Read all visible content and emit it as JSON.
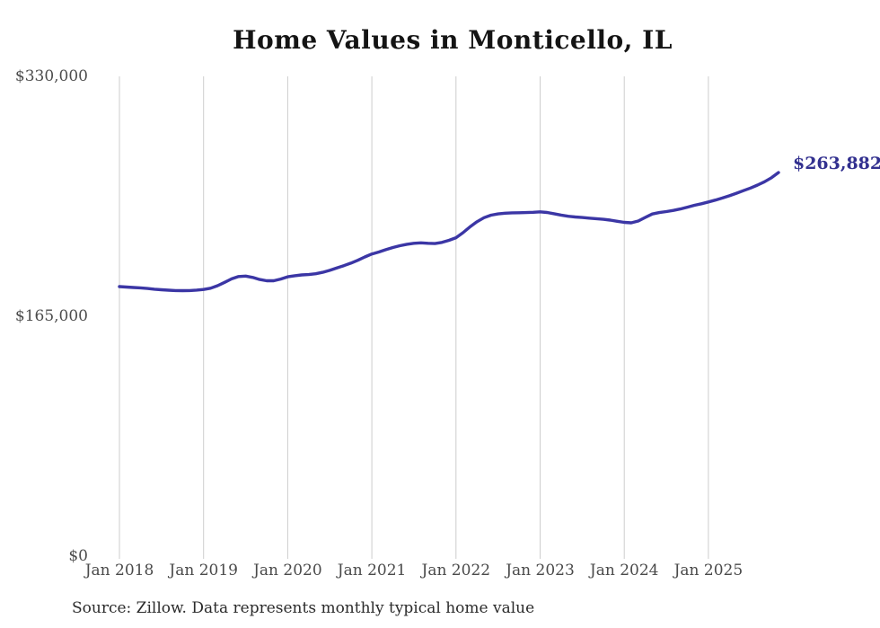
{
  "title": "Home Values in Monticello, IL",
  "source_note": "Source: Zillow. Data represents monthly typical home value",
  "end_label": "$263,882",
  "colors": {
    "line": "#3b36a5",
    "end_label": "#32308f",
    "grid": "#cdcdcd",
    "axis_text": "#4a4a4a",
    "title_text": "#141414",
    "background": "#ffffff"
  },
  "chart_data": {
    "type": "line",
    "title": "Home Values in Monticello, IL",
    "xlabel": "",
    "ylabel": "",
    "ylim": [
      0,
      330000
    ],
    "y_ticks": [
      0,
      165000,
      330000
    ],
    "y_tick_labels": [
      "$0",
      "$165,000",
      "$330,000"
    ],
    "x_tick_labels": [
      "Jan 2018",
      "Jan 2019",
      "Jan 2020",
      "Jan 2021",
      "Jan 2022",
      "Jan 2023",
      "Jan 2024",
      "Jan 2025"
    ],
    "x_frequency": "monthly",
    "x_start": "2018-01",
    "x_end": "2025-11",
    "grid": "vertical-only",
    "legend": false,
    "final_value": 263882,
    "final_value_label": "$263,882",
    "series": [
      {
        "name": "Typical home value",
        "values": [
          185400,
          185100,
          184800,
          184500,
          184100,
          183600,
          183200,
          182900,
          182700,
          182600,
          182700,
          183000,
          183400,
          184300,
          186000,
          188300,
          190700,
          192300,
          192600,
          191700,
          190300,
          189400,
          189400,
          190600,
          192100,
          192900,
          193400,
          193700,
          194200,
          195200,
          196600,
          198200,
          199800,
          201500,
          203500,
          205800,
          207800,
          209200,
          210800,
          212300,
          213500,
          214500,
          215200,
          215500,
          215200,
          215000,
          215800,
          217200,
          219000,
          222500,
          226500,
          230000,
          232800,
          234500,
          235400,
          235900,
          236100,
          236200,
          236300,
          236500,
          236800,
          236400,
          235500,
          234600,
          233800,
          233300,
          232900,
          232500,
          232100,
          231700,
          231100,
          230300,
          229600,
          229300,
          230500,
          233000,
          235300,
          236300,
          237000,
          237800,
          238800,
          240000,
          241300,
          242400,
          243600,
          244900,
          246300,
          247900,
          249600,
          251400,
          253200,
          255200,
          257500,
          260300,
          263882
        ]
      }
    ]
  }
}
